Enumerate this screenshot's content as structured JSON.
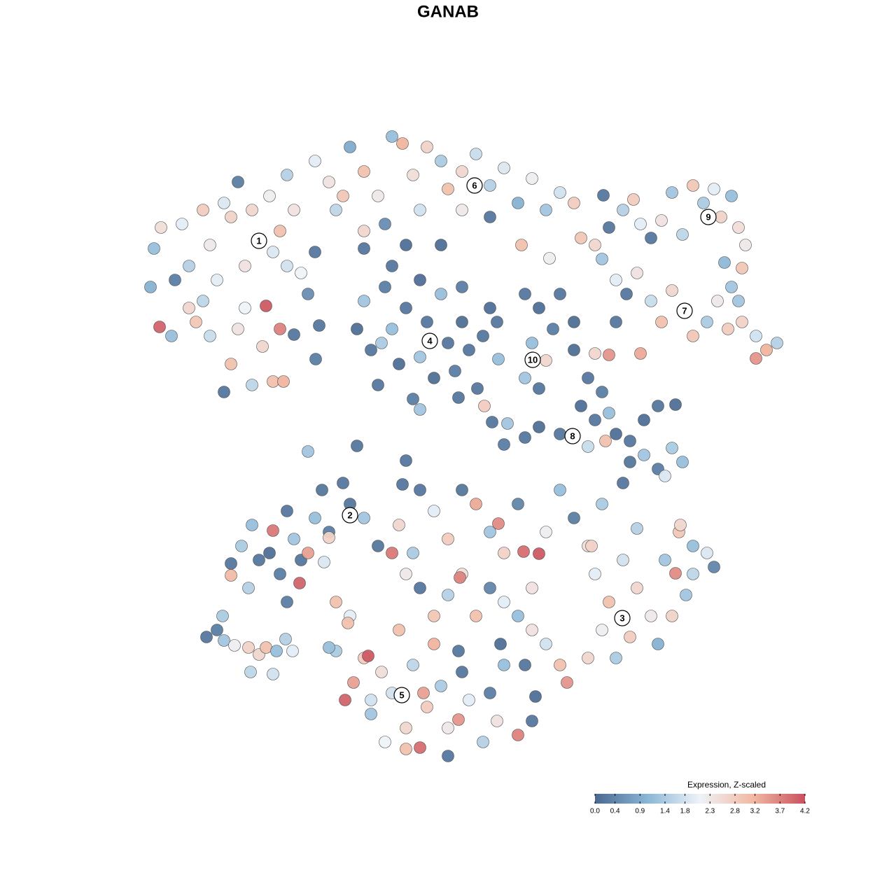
{
  "chart_data": {
    "type": "scatter",
    "title": "GANAB",
    "xlim": [
      -64,
      64
    ],
    "ylim": [
      -64,
      64
    ],
    "x": [
      -41,
      -42,
      -42.5,
      -41.2,
      -39.5,
      -38,
      -37,
      -35,
      -34,
      -35,
      -36,
      -33,
      -32,
      -31,
      -30,
      -29,
      -29,
      -28,
      -26,
      -25.5,
      -25,
      -24,
      -24,
      -23,
      -22,
      -21,
      -31,
      -32,
      -28,
      -25,
      -23,
      -20,
      -34,
      -30,
      -26.5,
      -23.5,
      -39,
      -37,
      -19,
      -17,
      -16,
      -14,
      -12,
      -10,
      -8,
      -6.5,
      -5,
      -3,
      -1,
      0,
      2,
      4,
      6,
      8,
      10,
      12,
      14,
      16,
      18,
      19,
      2,
      -4,
      -12,
      -9,
      6,
      10.5,
      -19,
      -15,
      -13,
      -12,
      -11,
      -10,
      -9,
      -8,
      -7,
      -6,
      -5,
      -4,
      -4,
      -3,
      -2,
      -1,
      0,
      1,
      2,
      3,
      -12,
      -6,
      -1,
      -8,
      2,
      -4,
      -9.5,
      11,
      13,
      15,
      12,
      14,
      11,
      13,
      7,
      6,
      5,
      7.2,
      16,
      18,
      23,
      25,
      26.5,
      27.5,
      29,
      30.5,
      32,
      33.5,
      35,
      36.5,
      38,
      39,
      40.5,
      41.5,
      42.5,
      42,
      39.5,
      22.2,
      14.5,
      22,
      24,
      25.5,
      27,
      29,
      30.5,
      32,
      34,
      35,
      37,
      38.5,
      40,
      41.5,
      42,
      44,
      45.5,
      47,
      44,
      40.5,
      21,
      27.5,
      23,
      24,
      18,
      20,
      22,
      19,
      21,
      23,
      24,
      26,
      28,
      30,
      32.5,
      26,
      28,
      30,
      32,
      33.5,
      25,
      31,
      16,
      13,
      11,
      8,
      21,
      22.5,
      20,
      8.5,
      -31,
      -29.5,
      -28,
      -27,
      -25.5,
      -25,
      -24,
      -23,
      -22,
      -21,
      -20,
      -21.2,
      -19,
      -18,
      -17,
      -15,
      -14,
      -12,
      -10,
      -16,
      -28.5,
      -23,
      -31,
      -17.7,
      -13,
      -20,
      -6,
      -6.5,
      -17,
      -7,
      -5,
      -4,
      -2,
      0,
      2,
      4,
      6,
      7.2,
      8,
      10,
      10.8,
      13,
      12,
      14,
      16,
      18,
      20,
      22,
      21,
      23,
      25,
      27,
      29,
      31,
      33,
      35,
      37,
      38,
      34,
      32,
      30,
      26,
      24,
      22,
      20,
      17,
      16,
      14,
      12,
      10,
      8,
      6,
      4,
      2,
      0,
      -2,
      -4,
      -6,
      -8,
      1.7,
      32.5,
      27,
      33.2,
      35,
      20.5,
      7.5,
      11,
      12.5,
      1.5,
      -16,
      -14.7,
      -13.5,
      -12,
      -11.4,
      -11,
      -9.5,
      -8,
      -7,
      -6,
      -4,
      -5,
      -3,
      -2,
      -1,
      0,
      1.5,
      2,
      3,
      5,
      6,
      7,
      8,
      10,
      12,
      -9,
      -6,
      0,
      -14,
      -17,
      -14.3,
      -11,
      -3.5,
      -34.5,
      -33,
      -32.2,
      -32,
      -30.5,
      -28.5,
      -28.2,
      -27,
      -26,
      -25,
      -24.5,
      -23.2,
      -22.2,
      -18.9,
      -18.4,
      -22,
      1.5,
      5.2,
      6.3,
      4.2
    ],
    "y": [
      31.5,
      28.5,
      23,
      17.3,
      16,
      32,
      26,
      34,
      29,
      21,
      18,
      24,
      35,
      33,
      38,
      26,
      20,
      34,
      20.3,
      36,
      28,
      31,
      17,
      39,
      34,
      25,
      12,
      8,
      9,
      9.5,
      26,
      22,
      16,
      17,
      14.5,
      9.5,
      24,
      20,
      41,
      38,
      34,
      43,
      39.5,
      36,
      44.5,
      43.5,
      39,
      43,
      41,
      37,
      39.5,
      42,
      37.5,
      40,
      35,
      38.5,
      34,
      36.5,
      35,
      30,
      34,
      34,
      31,
      32,
      33,
      29,
      28,
      36,
      17,
      21,
      14,
      9,
      23,
      17,
      12,
      20,
      7,
      24,
      13,
      18,
      10,
      22,
      15,
      11,
      18,
      14,
      28.5,
      29,
      29,
      26,
      23,
      5.5,
      15,
      22,
      20,
      17,
      15,
      12.5,
      10,
      8.5,
      18,
      20,
      16,
      12.7,
      22,
      18,
      31.5,
      34,
      35.5,
      32,
      30,
      32.5,
      36.5,
      30.5,
      37.5,
      35,
      37,
      33,
      36,
      31.5,
      29,
      25.7,
      26.5,
      36.1,
      27.1,
      27,
      24,
      22,
      25,
      21,
      18,
      22.5,
      19.5,
      16,
      18,
      21,
      17,
      21,
      18,
      16,
      14,
      15,
      12.8,
      23,
      29,
      13.5,
      13.3,
      18,
      14,
      10,
      8,
      6,
      4,
      5,
      2,
      1,
      4,
      6,
      6.2,
      -2,
      -1,
      -3,
      0,
      -2,
      -5,
      -4,
      2,
      3,
      1.5,
      0.5,
      13.5,
      1,
      0.2,
      3.5,
      -16.5,
      -14,
      -11,
      -16,
      -15,
      -11.8,
      -18,
      -9,
      -13,
      -16,
      -15,
      -19.3,
      -10,
      -6,
      -12,
      -5,
      -8,
      -10,
      -14,
      -22,
      -20,
      -22,
      -18.2,
      -16.3,
      0.3,
      -0.5,
      -1.8,
      -5.2,
      -12.8,
      -11,
      -15,
      -6,
      -9,
      -13,
      -6,
      -8,
      -12,
      -10.8,
      -15,
      -8,
      -14.8,
      -15.1,
      -20,
      -12,
      -6,
      -10,
      -14,
      -8,
      -18,
      -22,
      -16,
      -20,
      -24,
      -16,
      -12,
      -18,
      -15,
      -17,
      -21,
      -24,
      -28,
      -27,
      -30,
      -26,
      -30,
      -33.5,
      -31,
      -28,
      -26,
      -24,
      -22,
      -20,
      -24,
      -18,
      -21,
      -24,
      -20,
      -18,
      -15,
      -18.5,
      -17.9,
      -11.5,
      -11,
      -14,
      -14,
      -28,
      -31,
      -35.5,
      -29,
      -29,
      -36,
      -33.5,
      -30,
      -29.7,
      -38,
      -32,
      -35,
      -26,
      -40,
      -42.8,
      -31,
      -37,
      -28,
      -34,
      -40,
      -38.8,
      -32,
      -36,
      -42,
      -35,
      -39,
      -31,
      -41,
      -39,
      -42,
      -43,
      -44,
      -24,
      -28.5,
      -25,
      -36,
      -35,
      -27,
      -26,
      -24,
      -27.5,
      -28.2,
      -28.5,
      -32,
      -29.5,
      -28.5,
      -32.3,
      -29,
      -27.3,
      -29,
      12.7,
      17.5,
      16.2,
      7.2,
      6,
      3.7,
      8.5
    ],
    "values": [
      2.5,
      1.2,
      1.0,
      4.0,
      1.2,
      2.0,
      1.5,
      2.8,
      2.3,
      1.6,
      2.9,
      2.0,
      1.9,
      2.7,
      0.3,
      2.4,
      2.1,
      2.6,
      4.1,
      2.2,
      1.9,
      3.0,
      3.7,
      1.5,
      2.4,
      2.1,
      3.0,
      0.2,
      1.6,
      3.0,
      1.8,
      0.5,
      1.7,
      2.4,
      2.6,
      3.2,
      0.3,
      2.6,
      2.0,
      2.4,
      1.6,
      0.9,
      3.0,
      2.3,
      1.2,
      3.2,
      2.5,
      2.7,
      1.4,
      3.0,
      2.6,
      1.7,
      1.5,
      1.9,
      1.0,
      2.2,
      1.3,
      1.8,
      2.8,
      2.9,
      2.3,
      1.8,
      2.6,
      0.5,
      0.2,
      3.0,
      0.2,
      2.9,
      0.1,
      1.3,
      0.2,
      0.2,
      0.3,
      1.2,
      0.1,
      0.2,
      0.3,
      0.1,
      1.3,
      0.2,
      0.1,
      1.2,
      0.2,
      0.3,
      0.1,
      0.2,
      0.2,
      0.1,
      0.1,
      0.2,
      0.3,
      1.3,
      1.4,
      0.2,
      0.1,
      0.3,
      1.2,
      2.6,
      1.3,
      0.2,
      0.2,
      0.1,
      0.2,
      1.2,
      0.2,
      0.1,
      0.2,
      1.5,
      2.8,
      2.0,
      0.2,
      2.4,
      1.3,
      1.6,
      2.9,
      1.4,
      2.0,
      2.7,
      1.2,
      2.5,
      2.3,
      2.9,
      1.1,
      0.2,
      2.2,
      1.3,
      2.0,
      0.2,
      2.4,
      1.7,
      3.0,
      2.6,
      2.0,
      2.9,
      1.4,
      2.3,
      2.8,
      1.3,
      2.7,
      1.8,
      3.2,
      1.5,
      3.5,
      1.3,
      2.6,
      3.3,
      3.5,
      0.2,
      0.1,
      0.2,
      0.3,
      0.1,
      0.2,
      1.2,
      0.1,
      0.2,
      0.1,
      0.2,
      0.1,
      0.2,
      1.3,
      0.3,
      1.4,
      1.2,
      0.2,
      1.9,
      0.2,
      0.1,
      0.2,
      0.3,
      2.6,
      3.0,
      1.7,
      1.3,
      0.2,
      1.4,
      1.2,
      0.2,
      0.1,
      3.8,
      0.3,
      0.2,
      1.3,
      0.2,
      3.4,
      4.0,
      1.2,
      0.2,
      0.3,
      0.2,
      0.2,
      1.3,
      0.2,
      3.0,
      1.5,
      0.3,
      3.1,
      1.9,
      0.2,
      1.3,
      0.2,
      0.2,
      2.7,
      2.6,
      1.4,
      0.2,
      2.0,
      2.8,
      0.2,
      3.3,
      1.3,
      3.6,
      2.7,
      0.4,
      3.9,
      4.1,
      2.4,
      2.2,
      1.2,
      0.3,
      2.5,
      1.4,
      2.0,
      3.0,
      1.8,
      2.6,
      2.3,
      1.3,
      2.9,
      1.6,
      1.9,
      0.4,
      1.3,
      2.7,
      1.0,
      2.8,
      1.4,
      2.2,
      2.6,
      3.5,
      3.0,
      1.8,
      2.4,
      1.2,
      2.0,
      0.4,
      3.0,
      2.5,
      1.5,
      2.9,
      0.2,
      2.3,
      3.8,
      3.7,
      3.6,
      1.5,
      2.6,
      1.2,
      2.7,
      0.1,
      0.2,
      0.1,
      0.2,
      1.4,
      4.0,
      3.4,
      2.8,
      4.1,
      1.3,
      2.5,
      1.8,
      3.0,
      2.6,
      3.9,
      1.6,
      2.8,
      3.2,
      1.4,
      2.3,
      3.5,
      0.2,
      2.0,
      1.5,
      0.3,
      2.4,
      1.2,
      3.7,
      0.2,
      2.1,
      3.0,
      0.2,
      2.0,
      1.2,
      3.0,
      1.8,
      3.4,
      0.2,
      0.3,
      1.4,
      1.3,
      2.2,
      2.7,
      1.6,
      2.6,
      3.0,
      1.8,
      1.2,
      1.5,
      2.0,
      0.3,
      0.2,
      0.2,
      0.2,
      2.8,
      0.2,
      0.2
    ],
    "colormap": [
      "#4a6891",
      "#8ab6d6",
      "#eef3f8",
      "#f2b9a2",
      "#c9505e"
    ],
    "cluster_labels": [
      {
        "label": "1",
        "x": -27,
        "y": 29.6
      },
      {
        "label": "6",
        "x": 3.8,
        "y": 37.5
      },
      {
        "label": "9",
        "x": 37.2,
        "y": 33
      },
      {
        "label": "7",
        "x": 33.8,
        "y": 19.6
      },
      {
        "label": "4",
        "x": -2.6,
        "y": 15.3
      },
      {
        "label": "10",
        "x": 12.1,
        "y": 12.6
      },
      {
        "label": "8",
        "x": 17.8,
        "y": 1.7
      },
      {
        "label": "2",
        "x": -14,
        "y": -9.6
      },
      {
        "label": "3",
        "x": 24.9,
        "y": -24.3
      },
      {
        "label": "5",
        "x": -6.6,
        "y": -35.3
      }
    ],
    "colorbar": {
      "title": "Expression, Z-scaled",
      "lim": [
        0,
        4.2
      ],
      "ticks": [
        {
          "value": 0,
          "label": "0.0"
        },
        0.4,
        0.9,
        1.4,
        1.8,
        2.3,
        2.8,
        3.2,
        3.7,
        4.2
      ]
    }
  }
}
